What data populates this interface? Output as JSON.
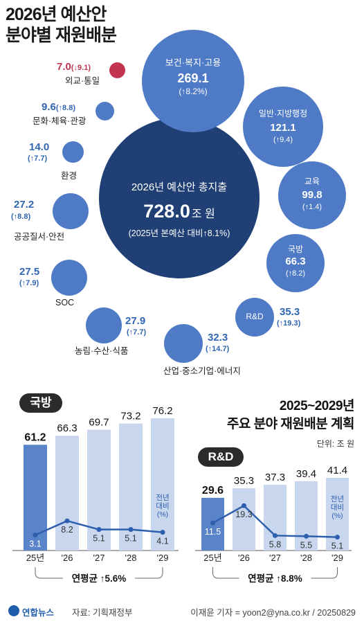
{
  "header": {
    "title_line1": "2026년 예산안",
    "title_line2": "분야별 재원배분"
  },
  "center": {
    "line1": "2026년 예산안 총지출",
    "amount": "728.0",
    "unit": "조 원",
    "line3": "(2025년 본예산 대비↑8.1%)"
  },
  "bubbles": [
    {
      "name": "보건·복지·고용",
      "value": "269.1",
      "change": "(↑8.2%)"
    },
    {
      "name": "일반·지방행정",
      "value": "121.1",
      "change": "(↑9.4)"
    },
    {
      "name": "교육",
      "value": "99.8",
      "change": "(↑1.4)"
    },
    {
      "name": "국방",
      "value": "66.3",
      "change": "(↑8.2)"
    },
    {
      "name": "R&D",
      "value": "35.3",
      "change": "(↑19.3)"
    },
    {
      "name": "산업·중소기업·에너지",
      "value": "32.3",
      "change": "(↑14.7)"
    },
    {
      "name": "농림·수산·식품",
      "value": "27.9",
      "change": "(↑7.7)"
    },
    {
      "name": "SOC",
      "value": "27.5",
      "change": "(↑7.9)"
    },
    {
      "name": "공공질서·안전",
      "value": "27.2",
      "change": "(↑8.8)"
    },
    {
      "name": "환경",
      "value": "14.0",
      "change": "(↑7.7)"
    },
    {
      "name": "문화·체육·관광",
      "value": "9.6",
      "change": "(↑8.8)"
    },
    {
      "name": "외교·통일",
      "value": "7.0",
      "change": "(↓9.1)"
    }
  ],
  "plan_title": {
    "line1": "2025~2029년",
    "line2": "주요 분야 재원배분 계획",
    "unit": "단위: 조 원"
  },
  "colors": {
    "dark_navy": "#1f3f75",
    "blue": "#4f7bc6",
    "red": "#c2344f",
    "bar_dark": "#5a84c9",
    "bar_light": "#c8d7ee",
    "line": "#2d5fae"
  },
  "chart_data": [
    {
      "type": "bar",
      "badge": "국방",
      "categories": [
        "25년",
        "'26",
        "'27",
        "'28",
        "'29"
      ],
      "values": [
        61.2,
        66.3,
        69.7,
        73.2,
        76.2
      ],
      "line_series": {
        "values": [
          3.1,
          8.2,
          5.1,
          5.1,
          4.1
        ],
        "label": "전년\n대비\n(%)"
      },
      "footer": "연평균 ↑5.6%"
    },
    {
      "type": "bar",
      "badge": "R&D",
      "categories": [
        "25년",
        "'26",
        "'27",
        "'28",
        "'29"
      ],
      "values": [
        29.6,
        35.3,
        37.3,
        39.4,
        41.4
      ],
      "line_series": {
        "values": [
          11.5,
          19.3,
          5.8,
          5.5,
          5.1
        ],
        "label": "전년\n대비\n(%)"
      },
      "footer": "연평균 ↑8.8%"
    }
  ],
  "footer": {
    "brand": "연합뉴스",
    "source": "자료: 기획재정부",
    "credit": "이재윤 기자 = yoon2@yna.co.kr / 20250829"
  }
}
